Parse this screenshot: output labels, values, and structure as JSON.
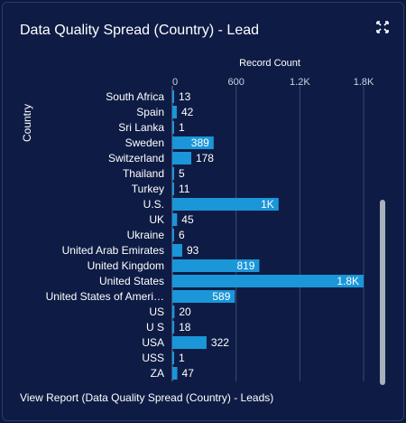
{
  "card": {
    "title": "Data Quality Spread (Country) - Lead",
    "expand_icon": "expand-arrows-icon",
    "footer_link": "View Report (Data Quality Spread (Country) - Leads)"
  },
  "colors": {
    "background": "#0e1c45",
    "bar": "#1b96d8",
    "text": "#ffffff",
    "axis_text": "#c9d2e3",
    "grid": "#3a4a72"
  },
  "chart_data": {
    "type": "bar",
    "orientation": "horizontal",
    "xlabel": "Record Count",
    "ylabel": "Country",
    "xlim": [
      0,
      1950
    ],
    "x_ticks": [
      {
        "value": 0,
        "label": "0"
      },
      {
        "value": 600,
        "label": "600"
      },
      {
        "value": 1200,
        "label": "1.2K"
      },
      {
        "value": 1800,
        "label": "1.8K"
      }
    ],
    "grid": true,
    "categories": [
      "South Africa",
      "Spain",
      "Sri Lanka",
      "Sweden",
      "Switzerland",
      "Thailand",
      "Turkey",
      "U.S.",
      "UK",
      "Ukraine",
      "United Arab Emirates",
      "United Kingdom",
      "United States",
      "United States of Ameri…",
      "US",
      "U S",
      "USA",
      "USS",
      "ZA"
    ],
    "values": [
      13,
      42,
      1,
      389,
      178,
      5,
      11,
      1000,
      45,
      6,
      93,
      819,
      1800,
      589,
      20,
      18,
      322,
      1,
      47
    ],
    "value_labels": [
      "13",
      "42",
      "1",
      "389",
      "178",
      "5",
      "11",
      "1K",
      "45",
      "6",
      "93",
      "819",
      "1.8K",
      "589",
      "20",
      "18",
      "322",
      "1",
      "47"
    ]
  }
}
